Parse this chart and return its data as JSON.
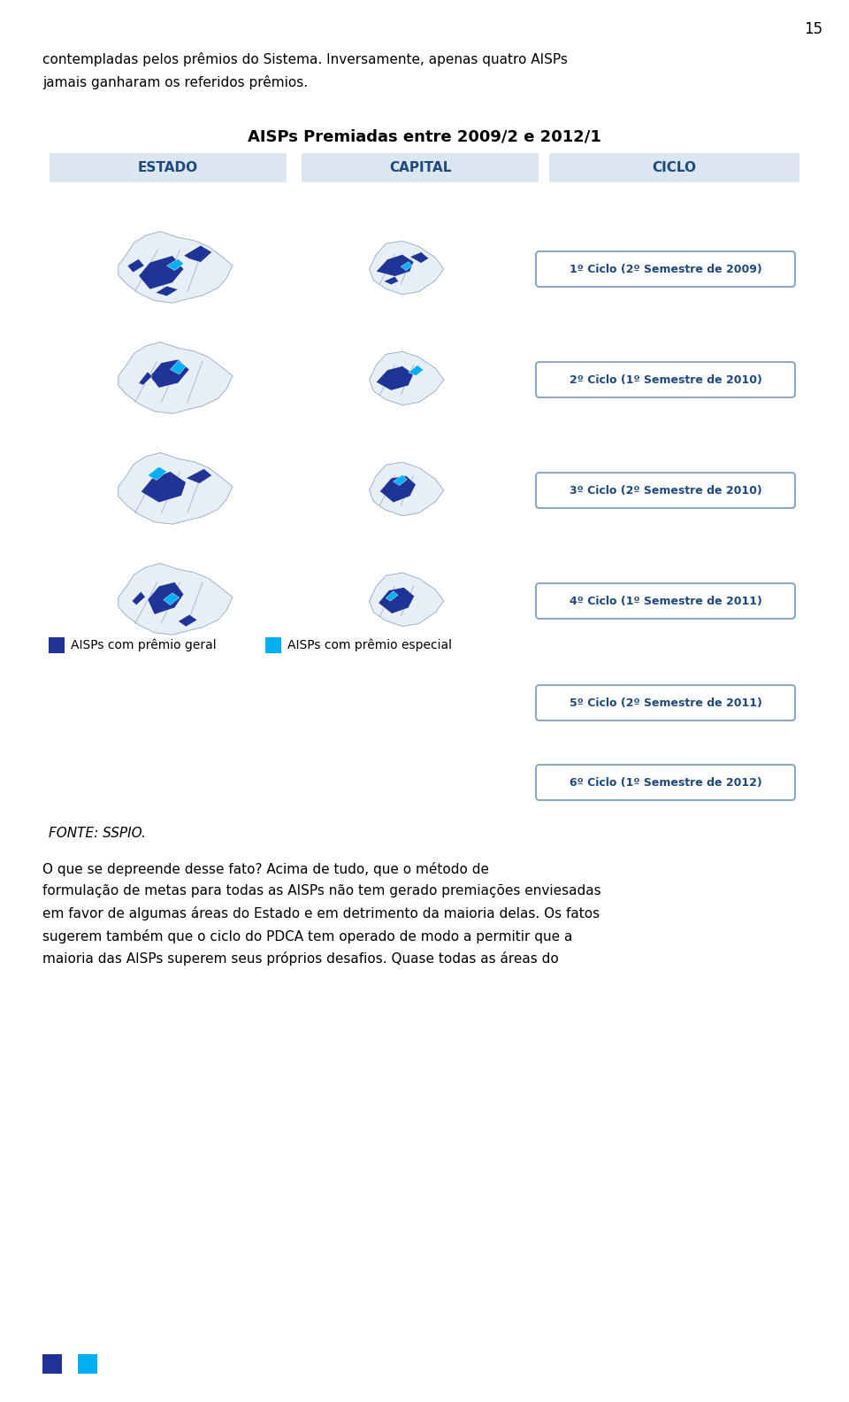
{
  "page_number": "15",
  "page_bg": "#ffffff",
  "text_color": "#000000",
  "text_para1": "contempladas pelos prêmios do Sistema. Inversamente, apenas quatro AISPs\njamais ganharam os referidos prêmios.",
  "chart_title": "AISPs Premiadas entre 2009/2 e 2012/1",
  "chart_title_color": "#000000",
  "header_bg": "#dce6f1",
  "header_text_color": "#1f497d",
  "header_cols": [
    "ESTADO",
    "CAPITAL",
    "CICLO"
  ],
  "cycle_labels": [
    "1º Ciclo (2º Semestre de 2009)",
    "2º Ciclo (1º Semestre de 2010)",
    "3º Ciclo (2º Semestre de 2010)",
    "4º Ciclo (1º Semestre de 2011)",
    "5º Ciclo (2º Semestre de 2011)",
    "6º Ciclo (1º Semestre de 2012)"
  ],
  "legend_geral_color": "#1f3497",
  "legend_especial_color": "#00b0f0",
  "legend_geral_text": "AISPs com prêmio geral",
  "legend_especial_text": "AISPs com prêmio especial",
  "fonte_text": "FONTE: SSPIO.",
  "bottom_text": "O que se depreende desse fato? Acima de tudo, que o método de\nformulação de metas para todas as AISPs não tem gerado premiações enviesadas\nem favor de algumas áreas do Estado e em detrimento da maioria delas. Os fatos\nsugerem também que o ciclo do PDCA tem operado de modo a permitir que a\nmaioria das AISPs superem seus próprios desafios. Quase todas as áreas do",
  "map_dark_blue": "#1f3497",
  "map_light_blue": "#00b0f0",
  "map_outline": "#8fa8c8",
  "label_box_bg": "#ffffff",
  "label_box_border": "#8fa8c8",
  "label_text_color": "#1f497d",
  "bottom_square_colors": [
    "#1f3497",
    "#00b0f0"
  ],
  "font_size_body": 11,
  "font_size_title": 13,
  "font_size_header": 11,
  "font_size_cycle": 9,
  "font_size_legend": 10
}
